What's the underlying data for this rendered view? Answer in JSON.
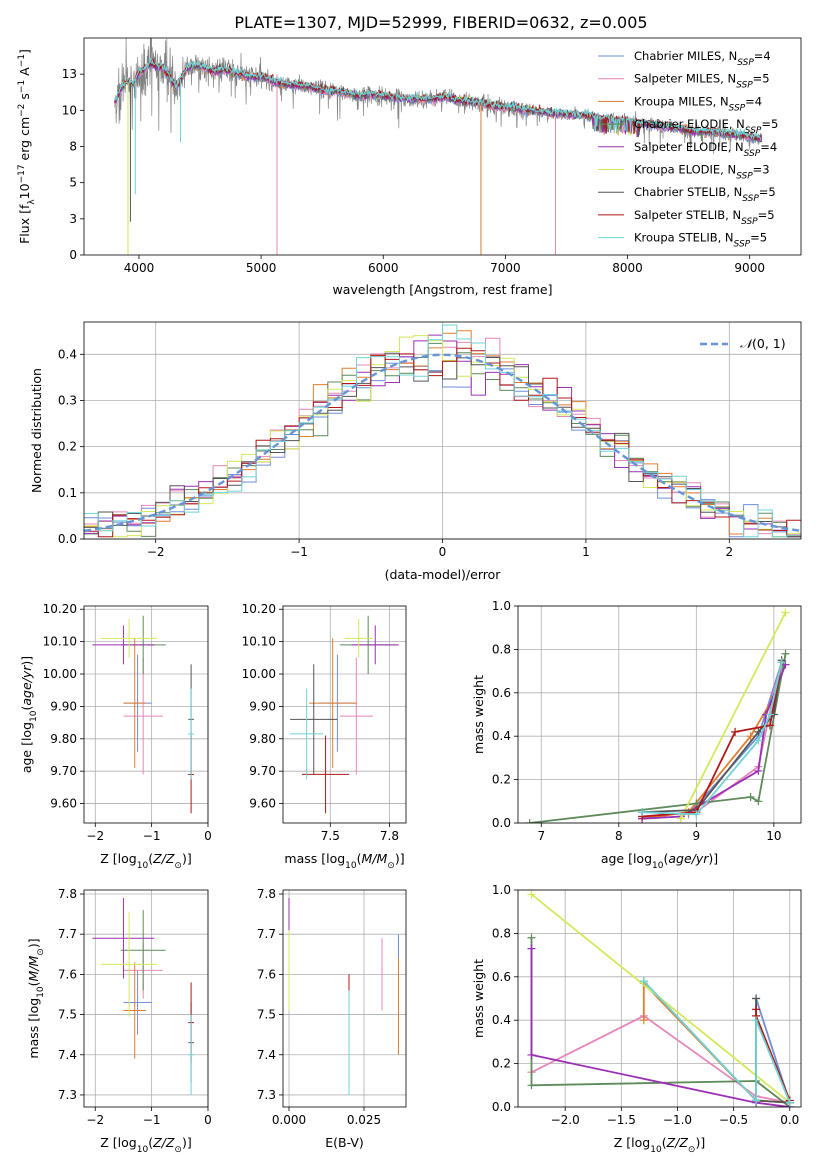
{
  "figure_title": "PLATE=1307, MJD=52999, FIBERID=0632, z=0.005",
  "colors": {
    "series": [
      "#6f8fd9",
      "#e588b7",
      "#e07d2e",
      "#5f8a5a",
      "#9b30b4",
      "#d4e85a",
      "#555555",
      "#b01818",
      "#6fd3d6"
    ],
    "data_spectrum": "#808080",
    "gaussian": "#6495d8",
    "grid": "#b0b0b0"
  },
  "legend_models": [
    {
      "imf": "Chabrier",
      "lib": "MILES",
      "nssp": "4"
    },
    {
      "imf": "Salpeter",
      "lib": "MILES",
      "nssp": "5"
    },
    {
      "imf": "Kroupa",
      "lib": "MILES",
      "nssp": "4"
    },
    {
      "imf": "Chabrier",
      "lib": "ELODIE",
      "nssp": "5"
    },
    {
      "imf": "Salpeter",
      "lib": "ELODIE",
      "nssp": "4"
    },
    {
      "imf": "Kroupa",
      "lib": "ELODIE",
      "nssp": "3"
    },
    {
      "imf": "Chabrier",
      "lib": "STELIB",
      "nssp": "5"
    },
    {
      "imf": "Salpeter",
      "lib": "STELIB",
      "nssp": "5"
    },
    {
      "imf": "Kroupa",
      "lib": "STELIB",
      "nssp": "5"
    }
  ],
  "chart_data": [
    {
      "id": "spectrum",
      "type": "line",
      "xlabel": "wavelength [Angstrom, rest frame]",
      "ylabel": "Flux [f_λ 10^-17 erg cm^-2 s^-1 A^-1]",
      "xlim": [
        3550,
        9420
      ],
      "ylim": [
        0,
        15
      ],
      "xticks": [
        4000,
        5000,
        6000,
        7000,
        8000,
        9000
      ],
      "yticks": [
        0.0,
        2.5,
        5.0,
        7.5,
        10.0,
        12.5
      ],
      "legend_placement": "upper right",
      "continuum": {
        "x": [
          3800,
          3850,
          3900,
          3950,
          4000,
          4100,
          4200,
          4300,
          4400,
          4500,
          4600,
          4700,
          4800,
          4900,
          5000,
          5100,
          5200,
          5300,
          5400,
          5500,
          5600,
          5700,
          5800,
          5900,
          6000,
          6100,
          6200,
          6300,
          6400,
          6500,
          6600,
          6700,
          6800,
          6900,
          7000,
          7100,
          7200,
          7300,
          7400,
          7500,
          7600,
          7700,
          7800,
          7900,
          8000,
          8100,
          8200,
          8300,
          8400,
          8500,
          8600,
          8700,
          8800,
          8900,
          9000,
          9100
        ],
        "y": [
          10.5,
          11.5,
          12.0,
          11.8,
          12.6,
          13.2,
          12.9,
          11.6,
          13.0,
          13.1,
          12.7,
          12.8,
          12.6,
          12.3,
          12.3,
          12.0,
          11.8,
          11.7,
          11.6,
          11.4,
          11.3,
          11.2,
          11.0,
          11.1,
          11.0,
          10.9,
          10.8,
          10.8,
          10.8,
          10.9,
          10.7,
          10.6,
          10.5,
          10.3,
          10.2,
          10.1,
          10.0,
          9.9,
          9.8,
          9.7,
          9.7,
          9.6,
          9.4,
          9.3,
          9.3,
          9.1,
          9.0,
          8.9,
          8.8,
          8.6,
          8.5,
          8.5,
          8.4,
          8.3,
          8.2,
          8.0
        ]
      },
      "spikes": [
        {
          "x": 3910,
          "y": 0,
          "series": 5
        },
        {
          "x": 5130,
          "y": 0,
          "series": 1
        },
        {
          "x": 6800,
          "y": 0,
          "series": 2
        },
        {
          "x": 7410,
          "y": 0,
          "series": 1
        },
        {
          "x": 3930,
          "y": 2.3,
          "series": 6
        },
        {
          "x": 3970,
          "y": 4.2,
          "series": 8
        },
        {
          "x": 4340,
          "y": 7.8,
          "series": 8
        }
      ]
    },
    {
      "id": "residuals",
      "type": "histogram",
      "xlabel": "(data-model)/error",
      "ylabel": "Normed distribution",
      "xlim": [
        -2.5,
        2.5
      ],
      "ylim": [
        0,
        0.47
      ],
      "xticks": [
        -2,
        -1,
        0,
        1,
        2
      ],
      "yticks": [
        0.0,
        0.1,
        0.2,
        0.3,
        0.4
      ],
      "bin_width": 0.1,
      "legend": "N(0,1)",
      "legend_placement": "upper right",
      "gaussian": {
        "mean": 0,
        "sigma": 1
      }
    },
    {
      "id": "age_vs_Z",
      "type": "errorbar",
      "xlabel": "Z [log10(Z/Z_sun)]",
      "ylabel": "age [log10(age/yr)]",
      "xlim": [
        -2.2,
        0
      ],
      "ylim": [
        9.54,
        10.21
      ],
      "xticks": [
        -2,
        -1,
        0
      ],
      "yticks": [
        9.6,
        9.7,
        9.8,
        9.9,
        10.0,
        10.1,
        10.2
      ],
      "points": [
        {
          "x": -1.25,
          "y": 9.91,
          "xerr": 0.25,
          "yerr": 0.15,
          "series": 0
        },
        {
          "x": -1.15,
          "y": 9.87,
          "xerr": 0.35,
          "yerr": 0.18,
          "series": 1
        },
        {
          "x": -1.3,
          "y": 9.91,
          "xerr": 0.2,
          "yerr": 0.2,
          "series": 2
        },
        {
          "x": -1.15,
          "y": 10.09,
          "xerr": 0.4,
          "yerr": 0.09,
          "series": 3
        },
        {
          "x": -1.5,
          "y": 10.09,
          "xerr": 0.55,
          "yerr": 0.06,
          "series": 4
        },
        {
          "x": -1.4,
          "y": 10.11,
          "xerr": 0.5,
          "yerr": 0.06,
          "series": 5
        },
        {
          "x": -0.3,
          "y": 9.86,
          "xerr": 0.05,
          "yerr": 0.17,
          "series": 6
        },
        {
          "x": -0.3,
          "y": 9.69,
          "xerr": 0.05,
          "yerr": 0.12,
          "series": 7
        },
        {
          "x": -0.3,
          "y": 9.815,
          "xerr": 0.05,
          "yerr": 0.14,
          "series": 8
        }
      ]
    },
    {
      "id": "age_vs_mass",
      "type": "errorbar",
      "xlabel": "mass [log10(M/M_sun)]",
      "ylabel": "",
      "xlim": [
        7.3,
        7.82
      ],
      "ylim": [
        9.54,
        10.21
      ],
      "xticks": [
        7.5,
        7.75
      ],
      "yticks": [
        9.6,
        9.7,
        9.8,
        9.9,
        10.0,
        10.1,
        10.2
      ],
      "points": [
        {
          "x": 7.53,
          "y": 9.91,
          "xerr": 0.08,
          "yerr": 0.15,
          "series": 0
        },
        {
          "x": 7.61,
          "y": 9.87,
          "xerr": 0.07,
          "yerr": 0.18,
          "series": 1
        },
        {
          "x": 7.51,
          "y": 9.91,
          "xerr": 0.1,
          "yerr": 0.2,
          "series": 2
        },
        {
          "x": 7.66,
          "y": 10.09,
          "xerr": 0.12,
          "yerr": 0.09,
          "series": 3
        },
        {
          "x": 7.69,
          "y": 10.09,
          "xerr": 0.1,
          "yerr": 0.06,
          "series": 4
        },
        {
          "x": 7.62,
          "y": 10.11,
          "xerr": 0.06,
          "yerr": 0.06,
          "series": 5
        },
        {
          "x": 7.43,
          "y": 9.86,
          "xerr": 0.1,
          "yerr": 0.17,
          "series": 6
        },
        {
          "x": 7.48,
          "y": 9.69,
          "xerr": 0.1,
          "yerr": 0.12,
          "series": 7
        },
        {
          "x": 7.4,
          "y": 9.815,
          "xerr": 0.07,
          "yerr": 0.14,
          "series": 8
        }
      ]
    },
    {
      "id": "weight_vs_age",
      "type": "line",
      "xlabel": "age [log10(age/yr)]",
      "ylabel": "mass weight",
      "xlim": [
        6.7,
        10.35
      ],
      "ylim": [
        0,
        1
      ],
      "xticks": [
        7,
        8,
        9,
        10
      ],
      "yticks": [
        0.0,
        0.2,
        0.4,
        0.6,
        0.8,
        1.0
      ],
      "series": [
        {
          "series": 0,
          "x": [
            8.3,
            8.9,
            9.8,
            10.1
          ],
          "y": [
            0.05,
            0.04,
            0.4,
            0.74
          ]
        },
        {
          "series": 1,
          "x": [
            8.3,
            9.0,
            9.8,
            10.0,
            10.1
          ],
          "y": [
            0.03,
            0.05,
            0.26,
            0.6,
            0.74
          ]
        },
        {
          "series": 2,
          "x": [
            8.3,
            8.9,
            9.7,
            10.0
          ],
          "y": [
            0.02,
            0.05,
            0.4,
            0.58
          ]
        },
        {
          "series": 3,
          "x": [
            6.85,
            9.0,
            9.7,
            9.8,
            10.15
          ],
          "y": [
            0.0,
            0.09,
            0.12,
            0.1,
            0.78
          ]
        },
        {
          "series": 4,
          "x": [
            8.3,
            8.8,
            9.8,
            9.9,
            10.15
          ],
          "y": [
            0.02,
            0.03,
            0.24,
            0.5,
            0.73
          ]
        },
        {
          "series": 5,
          "x": [
            8.8,
            10.15
          ],
          "y": [
            0.02,
            0.97
          ]
        },
        {
          "series": 6,
          "x": [
            8.3,
            9.0,
            9.8,
            10.0,
            10.1
          ],
          "y": [
            0.05,
            0.06,
            0.42,
            0.5,
            0.75
          ]
        },
        {
          "series": 7,
          "x": [
            8.3,
            9.0,
            9.5,
            9.95,
            10.1
          ],
          "y": [
            0.03,
            0.05,
            0.42,
            0.45,
            0.74
          ]
        },
        {
          "series": 8,
          "x": [
            8.3,
            9.0,
            9.8,
            9.95,
            10.1
          ],
          "y": [
            0.05,
            0.04,
            0.38,
            0.5,
            0.74
          ]
        }
      ]
    },
    {
      "id": "mass_vs_Z",
      "type": "errorbar",
      "xlabel": "Z [log10(Z/Z_sun)]",
      "ylabel": "mass [log10(M/M_sun)]",
      "xlim": [
        -2.2,
        0
      ],
      "ylim": [
        7.27,
        7.81
      ],
      "xticks": [
        -2,
        -1,
        0
      ],
      "yticks": [
        7.3,
        7.4,
        7.5,
        7.6,
        7.7,
        7.8
      ],
      "points": [
        {
          "x": -1.25,
          "y": 7.53,
          "xerr": 0.25,
          "yerr": 0.08,
          "series": 0
        },
        {
          "x": -1.15,
          "y": 7.61,
          "xerr": 0.35,
          "yerr": 0.07,
          "series": 1
        },
        {
          "x": -1.3,
          "y": 7.51,
          "xerr": 0.2,
          "yerr": 0.12,
          "series": 2
        },
        {
          "x": -1.15,
          "y": 7.66,
          "xerr": 0.4,
          "yerr": 0.1,
          "series": 3
        },
        {
          "x": -1.5,
          "y": 7.69,
          "xerr": 0.55,
          "yerr": 0.1,
          "series": 4
        },
        {
          "x": -1.4,
          "y": 7.625,
          "xerr": 0.5,
          "yerr": 0.13,
          "series": 5
        },
        {
          "x": -0.3,
          "y": 7.43,
          "xerr": 0.05,
          "yerr": 0.1,
          "series": 6
        },
        {
          "x": -0.3,
          "y": 7.48,
          "xerr": 0.05,
          "yerr": 0.1,
          "series": 7
        },
        {
          "x": -0.3,
          "y": 7.4,
          "xerr": 0.05,
          "yerr": 0.1,
          "series": 8
        }
      ]
    },
    {
      "id": "mass_vs_ebv",
      "type": "errorbar",
      "xlabel": "E(B-V)",
      "ylabel": "",
      "xlim": [
        -0.002,
        0.039
      ],
      "ylim": [
        7.27,
        7.81
      ],
      "xticks": [
        0.0,
        0.025
      ],
      "xtick_labels": [
        "0.000",
        "0.025"
      ],
      "yticks": [
        7.3,
        7.4,
        7.5,
        7.6,
        7.7,
        7.8
      ],
      "points": [
        {
          "x": 0.0365,
          "y": 7.6,
          "yerr": 0.1,
          "series": 0
        },
        {
          "x": 0.031,
          "y": 7.6,
          "yerr": 0.09,
          "series": 1
        },
        {
          "x": 0.0365,
          "y": 7.52,
          "yerr": 0.12,
          "series": 2
        },
        {
          "x": 0.0,
          "y": 7.62,
          "yerr": 0.1,
          "series": 3
        },
        {
          "x": 0.0,
          "y": 7.7,
          "yerr": 0.09,
          "series": 4
        },
        {
          "x": 0.0,
          "y": 7.61,
          "yerr": 0.1,
          "series": 5
        },
        {
          "x": 0.02,
          "y": 7.5,
          "yerr": 0.1,
          "series": 6
        },
        {
          "x": 0.02,
          "y": 7.5,
          "yerr": 0.1,
          "series": 7
        },
        {
          "x": 0.02,
          "y": 7.43,
          "yerr": 0.13,
          "series": 8
        }
      ]
    },
    {
      "id": "weight_vs_Z",
      "type": "line",
      "xlabel": "Z [log10(Z/Z_sun)]",
      "ylabel": "mass weight",
      "xlim": [
        -2.42,
        0.1
      ],
      "ylim": [
        0,
        1
      ],
      "xticks": [
        -2.0,
        -1.5,
        -1.0,
        -0.5,
        0.0
      ],
      "xtick_labels": [
        "−2.0",
        "−1.5",
        "−1.0",
        "−0.5",
        "0.0"
      ],
      "yticks": [
        0.0,
        0.2,
        0.4,
        0.6,
        0.8,
        1.0
      ],
      "series": [
        {
          "series": 0,
          "x": [
            -1.3,
            -0.3,
            -0.3,
            0.0
          ],
          "y": [
            0.58,
            0.03,
            0.5,
            0.02
          ]
        },
        {
          "series": 1,
          "x": [
            -2.3,
            -1.3,
            -0.3,
            0.0
          ],
          "y": [
            0.16,
            0.42,
            0.05,
            0.02
          ]
        },
        {
          "series": 2,
          "x": [
            -1.3,
            -1.3,
            -0.3,
            0.0
          ],
          "y": [
            0.4,
            0.57,
            0.03,
            0.02
          ]
        },
        {
          "series": 3,
          "x": [
            -2.3,
            -2.3,
            -0.3,
            0.0
          ],
          "y": [
            0.78,
            0.1,
            0.12,
            0.0
          ]
        },
        {
          "series": 4,
          "x": [
            -2.3,
            -2.3,
            -0.3,
            0.0
          ],
          "y": [
            0.73,
            0.24,
            0.02,
            0.0
          ]
        },
        {
          "series": 5,
          "x": [
            -2.3,
            0.0
          ],
          "y": [
            0.98,
            0.02
          ]
        },
        {
          "series": 6,
          "x": [
            -0.3,
            -0.3,
            0.0
          ],
          "y": [
            0.5,
            0.03,
            0.02
          ]
        },
        {
          "series": 7,
          "x": [
            -0.3,
            -0.3,
            0.0
          ],
          "y": [
            0.45,
            0.42,
            0.03
          ]
        },
        {
          "series": 8,
          "x": [
            -1.3,
            -0.3,
            -0.3,
            0.0
          ],
          "y": [
            0.58,
            0.03,
            0.4,
            0.02
          ]
        }
      ]
    }
  ]
}
